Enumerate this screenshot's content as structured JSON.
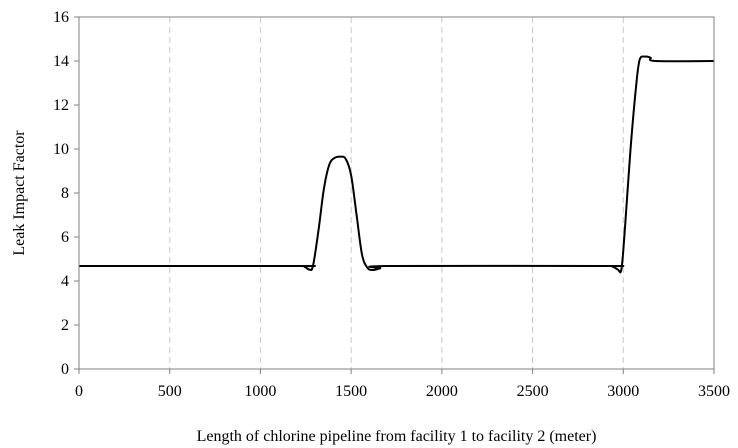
{
  "chart_data": {
    "type": "line",
    "title": "",
    "xlabel": "Length of chlorine pipeline from facility 1 to facility 2 (meter)",
    "ylabel": "Leak Impact Factor",
    "xlim": [
      0,
      3500
    ],
    "ylim": [
      0,
      16
    ],
    "xticks": [
      0,
      500,
      1000,
      1500,
      2000,
      2500,
      3000,
      3500
    ],
    "yticks": [
      0,
      2,
      4,
      6,
      8,
      10,
      12,
      14,
      16
    ],
    "xtick_labels": [
      "0",
      "500",
      "1000",
      "1500",
      "2000",
      "2500",
      "3000",
      "3500"
    ],
    "ytick_labels": [
      "0",
      "2",
      "4",
      "6",
      "8",
      "10",
      "12",
      "14",
      "16"
    ],
    "grid": "vertical dashed",
    "legend": "none",
    "series": [
      {
        "color": "#000000",
        "points": [
          [
            0,
            4.68
          ],
          [
            1200,
            4.68
          ],
          [
            1240,
            4.66
          ],
          [
            1270,
            4.52
          ],
          [
            1290,
            4.7
          ],
          [
            1320,
            6.3
          ],
          [
            1350,
            8.2
          ],
          [
            1380,
            9.3
          ],
          [
            1410,
            9.6
          ],
          [
            1440,
            9.65
          ],
          [
            1470,
            9.55
          ],
          [
            1500,
            8.8
          ],
          [
            1530,
            7.0
          ],
          [
            1560,
            5.2
          ],
          [
            1590,
            4.6
          ],
          [
            1620,
            4.5
          ],
          [
            1660,
            4.58
          ],
          [
            1700,
            4.68
          ],
          [
            2900,
            4.68
          ],
          [
            2940,
            4.66
          ],
          [
            2970,
            4.52
          ],
          [
            2990,
            4.55
          ],
          [
            3010,
            6.5
          ],
          [
            3040,
            10.0
          ],
          [
            3070,
            12.8
          ],
          [
            3090,
            14.05
          ],
          [
            3120,
            14.2
          ],
          [
            3150,
            14.15
          ],
          [
            3180,
            14.0
          ],
          [
            3500,
            14.0
          ]
        ]
      }
    ]
  }
}
